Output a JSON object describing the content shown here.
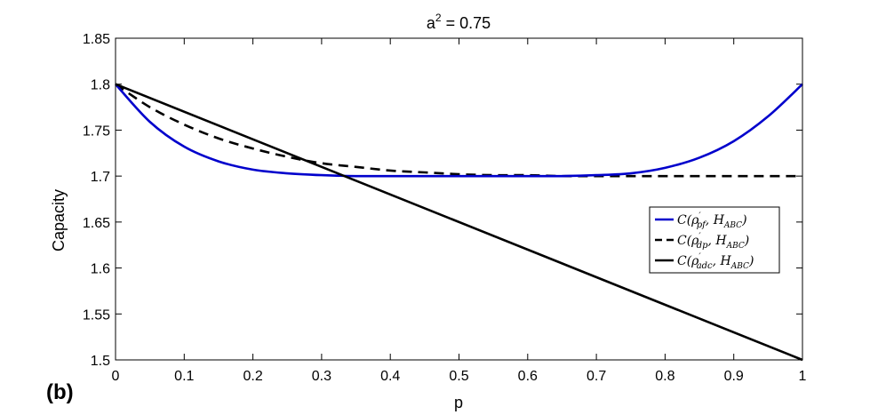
{
  "panel_label": "(b)",
  "chart_data": {
    "type": "line",
    "title_base": "a",
    "title_sup": "2",
    "title_rest": " = 0.75",
    "xlabel": "p",
    "ylabel": "Capacity",
    "xlim": [
      0,
      1
    ],
    "ylim": [
      1.5,
      1.85
    ],
    "xticks": [
      "0",
      "0.1",
      "0.2",
      "0.3",
      "0.4",
      "0.5",
      "0.6",
      "0.7",
      "0.8",
      "0.9",
      "1"
    ],
    "yticks": [
      "1.5",
      "1.55",
      "1.6",
      "1.65",
      "1.7",
      "1.75",
      "1.8",
      "1.85"
    ],
    "legend_position": "right",
    "series": [
      {
        "name": "C(ρ′pf, HABC)",
        "legend_parts": [
          "C(ρ",
          "′",
          "pf",
          ", H",
          "ABC",
          ")"
        ],
        "color": "#0000cc",
        "dash": "solid",
        "x": [
          0,
          0.05,
          0.1,
          0.15,
          0.2,
          0.25,
          0.3,
          0.35,
          0.4,
          0.45,
          0.5,
          0.55,
          0.6,
          0.65,
          0.7,
          0.75,
          0.8,
          0.85,
          0.9,
          0.95,
          1
        ],
        "y": [
          1.8,
          1.759,
          1.732,
          1.716,
          1.707,
          1.703,
          1.701,
          1.7,
          1.7,
          1.7,
          1.7,
          1.7,
          1.7,
          1.7,
          1.701,
          1.703,
          1.709,
          1.72,
          1.738,
          1.765,
          1.8
        ]
      },
      {
        "name": "C(ρ′dp, HABC)",
        "legend_parts": [
          "C(ρ",
          "′",
          "dp",
          ", H",
          "ABC",
          ")"
        ],
        "color": "#000000",
        "dash": "dashed",
        "x": [
          0,
          0.05,
          0.1,
          0.15,
          0.2,
          0.25,
          0.3,
          0.35,
          0.4,
          0.45,
          0.5,
          0.55,
          0.6,
          0.65,
          0.7,
          0.75,
          0.8,
          0.85,
          0.9,
          0.95,
          1
        ],
        "y": [
          1.8,
          1.775,
          1.756,
          1.741,
          1.73,
          1.721,
          1.714,
          1.71,
          1.706,
          1.704,
          1.702,
          1.701,
          1.701,
          1.7,
          1.7,
          1.7,
          1.7,
          1.7,
          1.7,
          1.7,
          1.7
        ]
      },
      {
        "name": "C(ρ′adc, HABC)",
        "legend_parts": [
          "C(ρ",
          "′",
          "adc",
          ", H",
          "ABC",
          ")"
        ],
        "color": "#000000",
        "dash": "solid",
        "x": [
          0,
          1
        ],
        "y": [
          1.8,
          1.5
        ]
      }
    ]
  }
}
